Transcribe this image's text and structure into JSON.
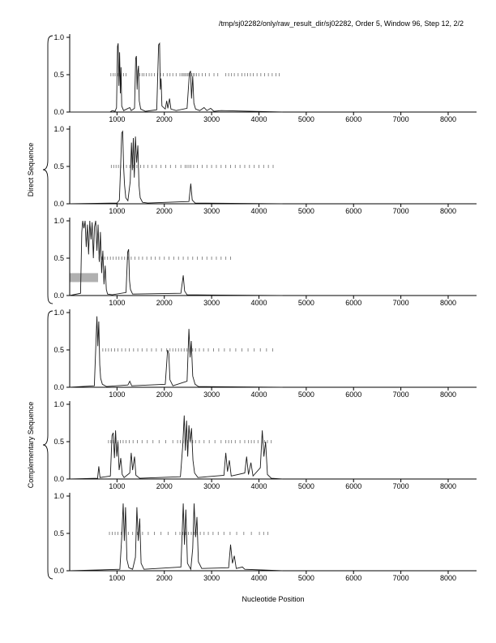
{
  "title": "/tmp/sj02282/only/raw_result_dir/sj02282, Order 5, Window 96, Step 12, 2/2",
  "page_label": "2/2",
  "chart_data": {
    "type": "line",
    "title": "/tmp/sj02282/only/raw_result_dir/sj02282, Order 5, Window 96, Step 12, 2/2",
    "xlabel": "Nucleotide Position",
    "ylabel_groups": [
      "Direct Sequence",
      "Complementary Sequence"
    ],
    "xlim": [
      0,
      8600
    ],
    "ylim": [
      0.0,
      1.0
    ],
    "xticks": [
      1000,
      2000,
      3000,
      4000,
      5000,
      6000,
      7000,
      8000
    ],
    "yticks": [
      [
        1.0,
        "1.0"
      ],
      [
        0.5,
        "0.5"
      ],
      [
        0.0,
        "0.0"
      ]
    ],
    "grid": false,
    "legend": "none",
    "marks_y": 0.5,
    "colors": {
      "line": "#1a1a1a",
      "marks": "#808080",
      "highlight": "#b0b0b0",
      "axis": "#000000"
    },
    "panels": [
      {
        "group": "direct",
        "trace": [
          [
            0,
            0.0
          ],
          [
            850,
            0.0
          ],
          [
            900,
            0.02
          ],
          [
            960,
            0.01
          ],
          [
            990,
            0.06
          ],
          [
            1010,
            0.88
          ],
          [
            1025,
            0.92
          ],
          [
            1040,
            0.35
          ],
          [
            1055,
            0.8
          ],
          [
            1070,
            0.25
          ],
          [
            1085,
            0.6
          ],
          [
            1100,
            0.08
          ],
          [
            1140,
            0.02
          ],
          [
            1270,
            0.06
          ],
          [
            1300,
            0.02
          ],
          [
            1370,
            0.05
          ],
          [
            1395,
            0.72
          ],
          [
            1410,
            0.75
          ],
          [
            1425,
            0.3
          ],
          [
            1440,
            0.55
          ],
          [
            1455,
            0.62
          ],
          [
            1470,
            0.15
          ],
          [
            1500,
            0.04
          ],
          [
            1600,
            0.01
          ],
          [
            1840,
            0.03
          ],
          [
            1880,
            0.9
          ],
          [
            1900,
            0.92
          ],
          [
            1915,
            0.3
          ],
          [
            1930,
            0.45
          ],
          [
            1950,
            0.08
          ],
          [
            2020,
            0.04
          ],
          [
            2050,
            0.15
          ],
          [
            2075,
            0.05
          ],
          [
            2110,
            0.18
          ],
          [
            2140,
            0.04
          ],
          [
            2250,
            0.02
          ],
          [
            2480,
            0.05
          ],
          [
            2530,
            0.52
          ],
          [
            2555,
            0.55
          ],
          [
            2575,
            0.18
          ],
          [
            2600,
            0.48
          ],
          [
            2625,
            0.12
          ],
          [
            2660,
            0.04
          ],
          [
            2750,
            0.02
          ],
          [
            2840,
            0.06
          ],
          [
            2900,
            0.02
          ],
          [
            2980,
            0.05
          ],
          [
            3050,
            0.01
          ],
          [
            3200,
            0.02
          ],
          [
            4500,
            0.0
          ]
        ],
        "marks": [
          870,
          920,
          960,
          1010,
          1050,
          1090,
          1140,
          1190,
          1480,
          1530,
          1570,
          1620,
          1680,
          1730,
          1790,
          1860,
          1920,
          1980,
          2060,
          2120,
          2180,
          2250,
          2330,
          2370,
          2400,
          2430,
          2460,
          2490,
          2520,
          2550,
          2580,
          2610,
          2640,
          2680,
          2730,
          2800,
          2870,
          2950,
          3050,
          3130,
          3300,
          3360,
          3420,
          3480,
          3560,
          3640,
          3700,
          3760,
          3820,
          3880,
          3960,
          4040,
          4120,
          4200,
          4280,
          4360,
          4430
        ]
      },
      {
        "group": "direct",
        "trace": [
          [
            0,
            0.0
          ],
          [
            1000,
            0.01
          ],
          [
            1050,
            0.05
          ],
          [
            1080,
            0.55
          ],
          [
            1100,
            0.95
          ],
          [
            1120,
            0.97
          ],
          [
            1140,
            0.5
          ],
          [
            1160,
            0.25
          ],
          [
            1185,
            0.08
          ],
          [
            1230,
            0.04
          ],
          [
            1280,
            0.3
          ],
          [
            1305,
            0.82
          ],
          [
            1325,
            0.45
          ],
          [
            1345,
            0.88
          ],
          [
            1365,
            0.35
          ],
          [
            1390,
            0.9
          ],
          [
            1415,
            0.55
          ],
          [
            1440,
            0.78
          ],
          [
            1465,
            0.25
          ],
          [
            1490,
            0.08
          ],
          [
            1540,
            0.02
          ],
          [
            1650,
            0.01
          ],
          [
            2520,
            0.03
          ],
          [
            2560,
            0.27
          ],
          [
            2590,
            0.05
          ],
          [
            2650,
            0.01
          ],
          [
            4500,
            0.0
          ]
        ],
        "marks": [
          880,
          930,
          980,
          1030,
          1080,
          1140,
          1200,
          1270,
          1340,
          1420,
          1500,
          1570,
          1650,
          1740,
          1830,
          1930,
          2030,
          2130,
          2240,
          2350,
          2440,
          2480,
          2520,
          2560,
          2620,
          2700,
          2800,
          2900,
          3000,
          3100,
          3200,
          3300,
          3400,
          3500,
          3600,
          3700,
          3800,
          3900,
          4000,
          4100,
          4200,
          4300
        ]
      },
      {
        "group": "direct",
        "trace": [
          [
            0,
            0.0
          ],
          [
            230,
            0.03
          ],
          [
            255,
            0.85
          ],
          [
            275,
            1.0
          ],
          [
            300,
            0.9
          ],
          [
            325,
            1.0
          ],
          [
            350,
            0.65
          ],
          [
            375,
            0.95
          ],
          [
            400,
            0.55
          ],
          [
            425,
            1.0
          ],
          [
            450,
            0.75
          ],
          [
            475,
            0.98
          ],
          [
            500,
            0.5
          ],
          [
            525,
            0.92
          ],
          [
            550,
            1.0
          ],
          [
            575,
            0.6
          ],
          [
            600,
            0.95
          ],
          [
            625,
            0.45
          ],
          [
            650,
            0.85
          ],
          [
            675,
            0.3
          ],
          [
            700,
            0.6
          ],
          [
            725,
            0.15
          ],
          [
            750,
            0.4
          ],
          [
            775,
            0.08
          ],
          [
            800,
            0.02
          ],
          [
            900,
            0.01
          ],
          [
            1190,
            0.04
          ],
          [
            1225,
            0.58
          ],
          [
            1245,
            0.62
          ],
          [
            1265,
            0.2
          ],
          [
            1285,
            0.08
          ],
          [
            1330,
            0.02
          ],
          [
            2350,
            0.03
          ],
          [
            2400,
            0.27
          ],
          [
            2430,
            0.06
          ],
          [
            2480,
            0.01
          ],
          [
            4500,
            0.0
          ]
        ],
        "marks": [
          620,
          680,
          740,
          800,
          860,
          920,
          980,
          1040,
          1100,
          1160,
          1230,
          1300,
          1380,
          1460,
          1540,
          1630,
          1720,
          1810,
          1900,
          2000,
          2100,
          2200,
          2300,
          2400,
          2500,
          2600,
          2700,
          2800,
          2900,
          3000,
          3100,
          3200,
          3300,
          3400
        ],
        "highlight_box": {
          "x0": 0,
          "x1": 600,
          "y0": 0.18,
          "y1": 0.3
        }
      },
      {
        "group": "complementary",
        "trace": [
          [
            0,
            0.0
          ],
          [
            520,
            0.02
          ],
          [
            555,
            0.6
          ],
          [
            575,
            0.95
          ],
          [
            595,
            0.55
          ],
          [
            615,
            0.88
          ],
          [
            635,
            0.3
          ],
          [
            655,
            0.12
          ],
          [
            690,
            0.04
          ],
          [
            780,
            0.01
          ],
          [
            1230,
            0.03
          ],
          [
            1270,
            0.08
          ],
          [
            1310,
            0.02
          ],
          [
            2020,
            0.04
          ],
          [
            2070,
            0.5
          ],
          [
            2095,
            0.45
          ],
          [
            2120,
            0.1
          ],
          [
            2180,
            0.02
          ],
          [
            2480,
            0.08
          ],
          [
            2520,
            0.78
          ],
          [
            2545,
            0.4
          ],
          [
            2570,
            0.62
          ],
          [
            2600,
            0.15
          ],
          [
            2650,
            0.04
          ],
          [
            2720,
            0.01
          ],
          [
            4500,
            0.0
          ]
        ],
        "marks": [
          700,
          760,
          820,
          880,
          950,
          1020,
          1100,
          1180,
          1260,
          1350,
          1440,
          1530,
          1630,
          1730,
          1830,
          1940,
          2050,
          2120,
          2180,
          2240,
          2300,
          2360,
          2420,
          2480,
          2540,
          2600,
          2660,
          2740,
          2830,
          2930,
          3040,
          3150,
          3270,
          3390,
          3510,
          3640,
          3770,
          3900,
          4030,
          4160,
          4290
        ]
      },
      {
        "group": "complementary",
        "trace": [
          [
            0,
            0.0
          ],
          [
            590,
            0.01
          ],
          [
            615,
            0.17
          ],
          [
            640,
            0.02
          ],
          [
            860,
            0.04
          ],
          [
            895,
            0.58
          ],
          [
            920,
            0.62
          ],
          [
            945,
            0.28
          ],
          [
            970,
            0.65
          ],
          [
            995,
            0.3
          ],
          [
            1020,
            0.5
          ],
          [
            1045,
            0.12
          ],
          [
            1080,
            0.28
          ],
          [
            1110,
            0.06
          ],
          [
            1150,
            0.02
          ],
          [
            1270,
            0.08
          ],
          [
            1300,
            0.35
          ],
          [
            1330,
            0.12
          ],
          [
            1370,
            0.3
          ],
          [
            1400,
            0.05
          ],
          [
            1480,
            0.01
          ],
          [
            2340,
            0.03
          ],
          [
            2390,
            0.45
          ],
          [
            2420,
            0.85
          ],
          [
            2445,
            0.38
          ],
          [
            2470,
            0.78
          ],
          [
            2495,
            0.3
          ],
          [
            2520,
            0.72
          ],
          [
            2545,
            0.5
          ],
          [
            2575,
            0.68
          ],
          [
            2605,
            0.25
          ],
          [
            2640,
            0.08
          ],
          [
            2710,
            0.02
          ],
          [
            3260,
            0.05
          ],
          [
            3300,
            0.35
          ],
          [
            3335,
            0.1
          ],
          [
            3375,
            0.25
          ],
          [
            3415,
            0.04
          ],
          [
            3700,
            0.08
          ],
          [
            3740,
            0.3
          ],
          [
            3780,
            0.06
          ],
          [
            3830,
            0.22
          ],
          [
            3875,
            0.04
          ],
          [
            4030,
            0.15
          ],
          [
            4070,
            0.65
          ],
          [
            4105,
            0.3
          ],
          [
            4140,
            0.5
          ],
          [
            4180,
            0.06
          ],
          [
            4260,
            0.01
          ],
          [
            4500,
            0.0
          ]
        ],
        "marks": [
          820,
          870,
          920,
          970,
          1020,
          1070,
          1130,
          1190,
          1260,
          1340,
          1430,
          1530,
          1640,
          1760,
          1890,
          2030,
          2180,
          2280,
          2340,
          2400,
          2450,
          2500,
          2550,
          2600,
          2660,
          2740,
          2840,
          2950,
          3070,
          3200,
          3300,
          3360,
          3420,
          3500,
          3600,
          3700,
          3780,
          3840,
          3900,
          3980,
          4060,
          4120,
          4180,
          4260
        ]
      },
      {
        "group": "complementary",
        "trace": [
          [
            0,
            0.0
          ],
          [
            1060,
            0.02
          ],
          [
            1100,
            0.45
          ],
          [
            1130,
            0.9
          ],
          [
            1155,
            0.4
          ],
          [
            1180,
            0.85
          ],
          [
            1210,
            0.15
          ],
          [
            1250,
            0.04
          ],
          [
            1330,
            0.02
          ],
          [
            1390,
            0.18
          ],
          [
            1420,
            0.85
          ],
          [
            1450,
            0.4
          ],
          [
            1480,
            0.7
          ],
          [
            1510,
            0.1
          ],
          [
            1570,
            0.02
          ],
          [
            2350,
            0.05
          ],
          [
            2400,
            0.9
          ],
          [
            2425,
            0.35
          ],
          [
            2455,
            0.82
          ],
          [
            2490,
            0.1
          ],
          [
            2560,
            0.02
          ],
          [
            2600,
            0.3
          ],
          [
            2630,
            0.9
          ],
          [
            2660,
            0.45
          ],
          [
            2690,
            0.72
          ],
          [
            2720,
            0.12
          ],
          [
            2790,
            0.03
          ],
          [
            3360,
            0.04
          ],
          [
            3400,
            0.35
          ],
          [
            3440,
            0.1
          ],
          [
            3480,
            0.2
          ],
          [
            3520,
            0.03
          ],
          [
            3650,
            0.05
          ],
          [
            3700,
            0.02
          ],
          [
            4500,
            0.0
          ]
        ],
        "marks": [
          840,
          900,
          960,
          1020,
          1090,
          1160,
          1240,
          1330,
          1430,
          1540,
          1660,
          1790,
          1930,
          2080,
          2240,
          2330,
          2390,
          2450,
          2510,
          2570,
          2630,
          2690,
          2760,
          2840,
          2930,
          3030,
          3140,
          3260,
          3390,
          3530,
          3680,
          3840,
          4010,
          4100,
          4190
        ]
      }
    ]
  }
}
